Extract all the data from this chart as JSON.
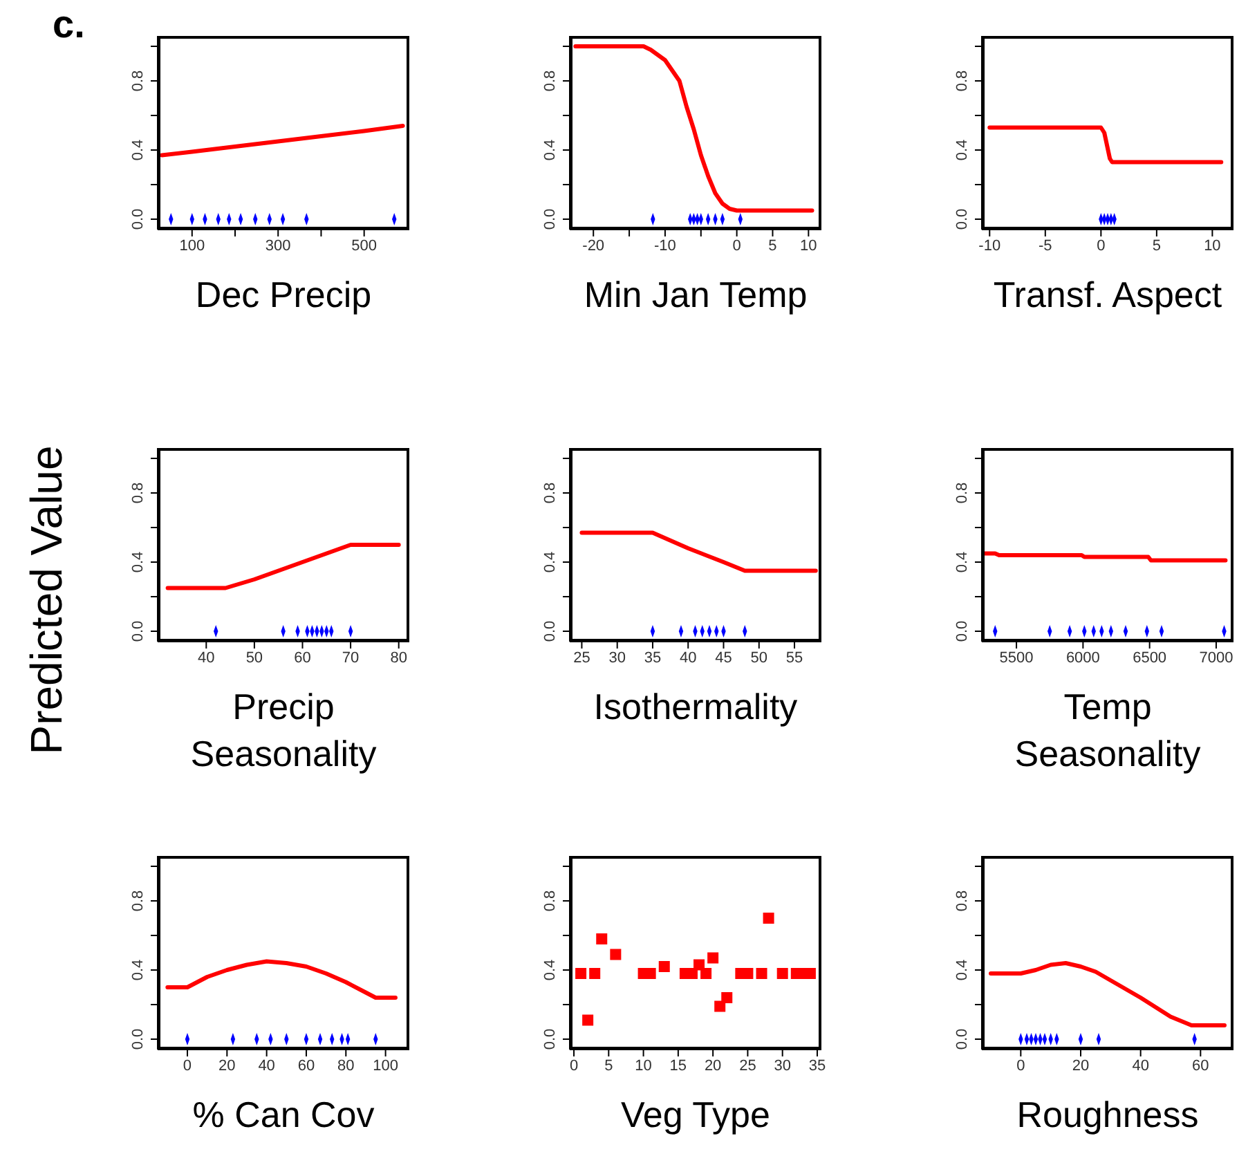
{
  "chart_data": [
    {
      "type": "line",
      "title": "c.",
      "xlabel": "Dec Precip",
      "xlim": [
        20,
        605
      ],
      "xticks": [
        100,
        {
          "value": 200,
          "label": null
        },
        300,
        {
          "value": 400,
          "label": null
        },
        500
      ],
      "ylim": [
        -0.06,
        1.06
      ],
      "yticks": [
        {
          "value": 0,
          "label": "0.0"
        },
        {
          "value": 0.2,
          "label": null
        },
        {
          "value": 0.4,
          "label": "0.4"
        },
        {
          "value": 0.6,
          "label": null
        },
        {
          "value": 0.8,
          "label": "0.8"
        },
        {
          "value": 1,
          "label": null
        }
      ],
      "series": [
        {
          "color": "#ff0000",
          "x": [
            30,
            100,
            200,
            300,
            400,
            500,
            590
          ],
          "values": [
            0.37,
            0.39,
            0.42,
            0.45,
            0.48,
            0.51,
            0.54
          ]
        },
        {
          "type": "scatter",
          "color": "#0000ff",
          "x": [
            51,
            100,
            130,
            161,
            186,
            213,
            247,
            280,
            311,
            366,
            570
          ],
          "values": [
            0,
            0,
            0,
            0,
            0,
            0,
            0,
            0,
            0,
            0,
            0
          ]
        }
      ]
    },
    {
      "type": "line",
      "xlabel": "Min Jan Temp",
      "xlim": [
        -23.3,
        11.8
      ],
      "xticks": [
        -20,
        {
          "value": -15,
          "label": null
        },
        -10,
        {
          "value": -5,
          "label": null
        },
        0,
        5,
        10
      ],
      "ylim": [
        -0.06,
        1.06
      ],
      "yticks": [
        {
          "value": 0,
          "label": "0.0"
        },
        {
          "value": 0.2,
          "label": null
        },
        {
          "value": 0.4,
          "label": "0.4"
        },
        {
          "value": 0.6,
          "label": null
        },
        {
          "value": 0.8,
          "label": "0.8"
        },
        {
          "value": 1,
          "label": null
        }
      ],
      "series": [
        {
          "color": "#ff0000",
          "x": [
            -22.5,
            -13,
            -12,
            -10,
            -8,
            -7,
            -6,
            -5,
            -4,
            -3,
            -2,
            -1,
            0,
            10.5
          ],
          "values": [
            1,
            1,
            0.98,
            0.92,
            0.8,
            0.65,
            0.52,
            0.37,
            0.25,
            0.15,
            0.09,
            0.06,
            0.05,
            0.05
          ]
        },
        {
          "type": "scatter",
          "color": "#0000ff",
          "x": [
            -11.7,
            -6.5,
            -6,
            -5.5,
            -5,
            -4,
            -3,
            -2,
            0.5
          ],
          "values": [
            0,
            0,
            0,
            0,
            0,
            0,
            0,
            0,
            0
          ]
        }
      ]
    },
    {
      "type": "line",
      "xlabel": "Transf. Aspect",
      "xlim": [
        -10.7,
        11.9
      ],
      "xticks": [
        -10,
        -5,
        0,
        5,
        10
      ],
      "ylim": [
        -0.06,
        1.06
      ],
      "yticks": [
        {
          "value": 0,
          "label": "0.0"
        },
        {
          "value": 0.2,
          "label": null
        },
        {
          "value": 0.4,
          "label": "0.4"
        },
        {
          "value": 0.6,
          "label": null
        },
        {
          "value": 0.8,
          "label": "0.8"
        },
        {
          "value": 1,
          "label": null
        }
      ],
      "series": [
        {
          "color": "#ff0000",
          "x": [
            -10,
            0,
            0.3,
            0.8,
            1,
            10.8
          ],
          "values": [
            0.53,
            0.53,
            0.5,
            0.35,
            0.33,
            0.33
          ]
        },
        {
          "type": "scatter",
          "color": "#0000ff",
          "x": [
            0,
            0.3,
            0.6,
            0.9,
            1.2
          ],
          "values": [
            0,
            0,
            0,
            0,
            0
          ]
        }
      ]
    },
    {
      "type": "line",
      "xlabel": "Precip Seasonality",
      "ylabel": "Predicted Value",
      "xlim": [
        29.9,
        82.2
      ],
      "xticks": [
        40,
        50,
        60,
        70,
        80
      ],
      "ylim": [
        -0.06,
        1.06
      ],
      "yticks": [
        {
          "value": 0,
          "label": "0.0"
        },
        {
          "value": 0.2,
          "label": null
        },
        {
          "value": 0.4,
          "label": "0.4"
        },
        {
          "value": 0.6,
          "label": null
        },
        {
          "value": 0.8,
          "label": "0.8"
        },
        {
          "value": 1,
          "label": null
        }
      ],
      "series": [
        {
          "color": "#ff0000",
          "x": [
            32,
            44,
            50,
            60,
            70,
            80
          ],
          "values": [
            0.25,
            0.25,
            0.3,
            0.4,
            0.5,
            0.5
          ]
        },
        {
          "type": "scatter",
          "color": "#0000ff",
          "x": [
            42,
            56,
            59,
            61,
            62,
            63,
            64,
            65,
            66,
            70
          ],
          "values": [
            0,
            0,
            0,
            0,
            0,
            0,
            0,
            0,
            0,
            0
          ]
        }
      ]
    },
    {
      "type": "line",
      "xlabel": "Isothermality",
      "xlim": [
        23.3,
        58.8
      ],
      "xticks": [
        25,
        30,
        35,
        40,
        45,
        50,
        55
      ],
      "ylim": [
        -0.06,
        1.06
      ],
      "yticks": [
        {
          "value": 0,
          "label": "0.0"
        },
        {
          "value": 0.2,
          "label": null
        },
        {
          "value": 0.4,
          "label": "0.4"
        },
        {
          "value": 0.6,
          "label": null
        },
        {
          "value": 0.8,
          "label": "0.8"
        },
        {
          "value": 1,
          "label": null
        }
      ],
      "series": [
        {
          "color": "#ff0000",
          "x": [
            25,
            35,
            40,
            45,
            48,
            58
          ],
          "values": [
            0.57,
            0.57,
            0.48,
            0.4,
            0.35,
            0.35
          ]
        },
        {
          "type": "scatter",
          "color": "#0000ff",
          "x": [
            35,
            39,
            41,
            42,
            43,
            44,
            45,
            48
          ],
          "values": [
            0,
            0,
            0,
            0,
            0,
            0,
            0,
            0
          ]
        }
      ]
    },
    {
      "type": "line",
      "xlabel": "Temp Seasonality",
      "xlim": [
        5240,
        7130
      ],
      "xticks": [
        5500,
        6000,
        6500,
        7000
      ],
      "ylim": [
        -0.06,
        1.06
      ],
      "yticks": [
        {
          "value": 0,
          "label": "0.0"
        },
        {
          "value": 0.2,
          "label": null
        },
        {
          "value": 0.4,
          "label": "0.4"
        },
        {
          "value": 0.6,
          "label": null
        },
        {
          "value": 0.8,
          "label": "0.8"
        },
        {
          "value": 1,
          "label": null
        }
      ],
      "series": [
        {
          "color": "#ff0000",
          "x": [
            5260,
            5340,
            5370,
            5990,
            6010,
            6490,
            6510,
            7070
          ],
          "values": [
            0.45,
            0.45,
            0.44,
            0.44,
            0.43,
            0.43,
            0.41,
            0.41
          ]
        },
        {
          "type": "scatter",
          "color": "#0000ff",
          "x": [
            5340,
            5750,
            5900,
            6010,
            6080,
            6140,
            6210,
            6320,
            6480,
            6590,
            7060
          ],
          "values": [
            0,
            0,
            0,
            0,
            0,
            0,
            0,
            0,
            0,
            0,
            0
          ]
        }
      ]
    },
    {
      "type": "line",
      "xlabel": "% Can Cov",
      "xlim": [
        -15,
        112
      ],
      "xticks": [
        0,
        20,
        40,
        60,
        80,
        100
      ],
      "ylim": [
        -0.06,
        1.06
      ],
      "yticks": [
        {
          "value": 0,
          "label": "0.0"
        },
        {
          "value": 0.2,
          "label": null
        },
        {
          "value": 0.4,
          "label": "0.4"
        },
        {
          "value": 0.6,
          "label": null
        },
        {
          "value": 0.8,
          "label": "0.8"
        },
        {
          "value": 1,
          "label": null
        }
      ],
      "series": [
        {
          "color": "#ff0000",
          "x": [
            -10,
            0,
            10,
            20,
            30,
            40,
            50,
            60,
            70,
            80,
            90,
            95,
            105
          ],
          "values": [
            0.3,
            0.3,
            0.36,
            0.4,
            0.43,
            0.45,
            0.44,
            0.42,
            0.38,
            0.33,
            0.27,
            0.24,
            0.24
          ]
        },
        {
          "type": "scatter",
          "color": "#0000ff",
          "x": [
            0,
            23,
            35,
            42,
            50,
            60,
            67,
            73,
            78,
            81,
            95
          ],
          "values": [
            0,
            0,
            0,
            0,
            0,
            0,
            0,
            0,
            0,
            0,
            0
          ]
        }
      ]
    },
    {
      "type": "scatter",
      "xlabel": "Veg Type",
      "xlim": [
        -0.6,
        35.6
      ],
      "xticks": [
        0,
        5,
        10,
        15,
        20,
        25,
        30,
        35
      ],
      "ylim": [
        -0.06,
        1.06
      ],
      "yticks": [
        {
          "value": 0,
          "label": "0.0"
        },
        {
          "value": 0.2,
          "label": null
        },
        {
          "value": 0.4,
          "label": "0.4"
        },
        {
          "value": 0.6,
          "label": null
        },
        {
          "value": 0.8,
          "label": "0.8"
        },
        {
          "value": 1,
          "label": null
        }
      ],
      "series": [
        {
          "color": "#ff0000",
          "marker": "square",
          "x": [
            1,
            2,
            3,
            4,
            6,
            10,
            11,
            13,
            16,
            17,
            18,
            19,
            20,
            21,
            22,
            24,
            25,
            27,
            28,
            30,
            32,
            33,
            34
          ],
          "values": [
            0.38,
            0.11,
            0.38,
            0.58,
            0.49,
            0.38,
            0.38,
            0.42,
            0.38,
            0.38,
            0.43,
            0.38,
            0.47,
            0.19,
            0.24,
            0.38,
            0.38,
            0.38,
            0.7,
            0.38,
            0.38,
            0.38,
            0.38
          ]
        }
      ]
    },
    {
      "type": "line",
      "xlabel": "Roughness",
      "xlim": [
        -13,
        71
      ],
      "xticks": [
        0,
        20,
        40,
        60
      ],
      "ylim": [
        -0.06,
        1.06
      ],
      "yticks": [
        {
          "value": 0,
          "label": "0.0"
        },
        {
          "value": 0.2,
          "label": null
        },
        {
          "value": 0.4,
          "label": "0.4"
        },
        {
          "value": 0.6,
          "label": null
        },
        {
          "value": 0.8,
          "label": "0.8"
        },
        {
          "value": 1,
          "label": null
        }
      ],
      "series": [
        {
          "color": "#ff0000",
          "x": [
            -10,
            0,
            5,
            10,
            15,
            20,
            25,
            30,
            40,
            50,
            57,
            68
          ],
          "values": [
            0.38,
            0.38,
            0.4,
            0.43,
            0.44,
            0.42,
            0.39,
            0.34,
            0.24,
            0.13,
            0.08,
            0.08
          ]
        },
        {
          "type": "scatter",
          "color": "#0000ff",
          "x": [
            0,
            2,
            3.5,
            5,
            6.5,
            8,
            10,
            12,
            20,
            26,
            58
          ],
          "values": [
            0,
            0,
            0,
            0,
            0,
            0,
            0,
            0,
            0,
            0,
            0
          ]
        }
      ]
    }
  ]
}
